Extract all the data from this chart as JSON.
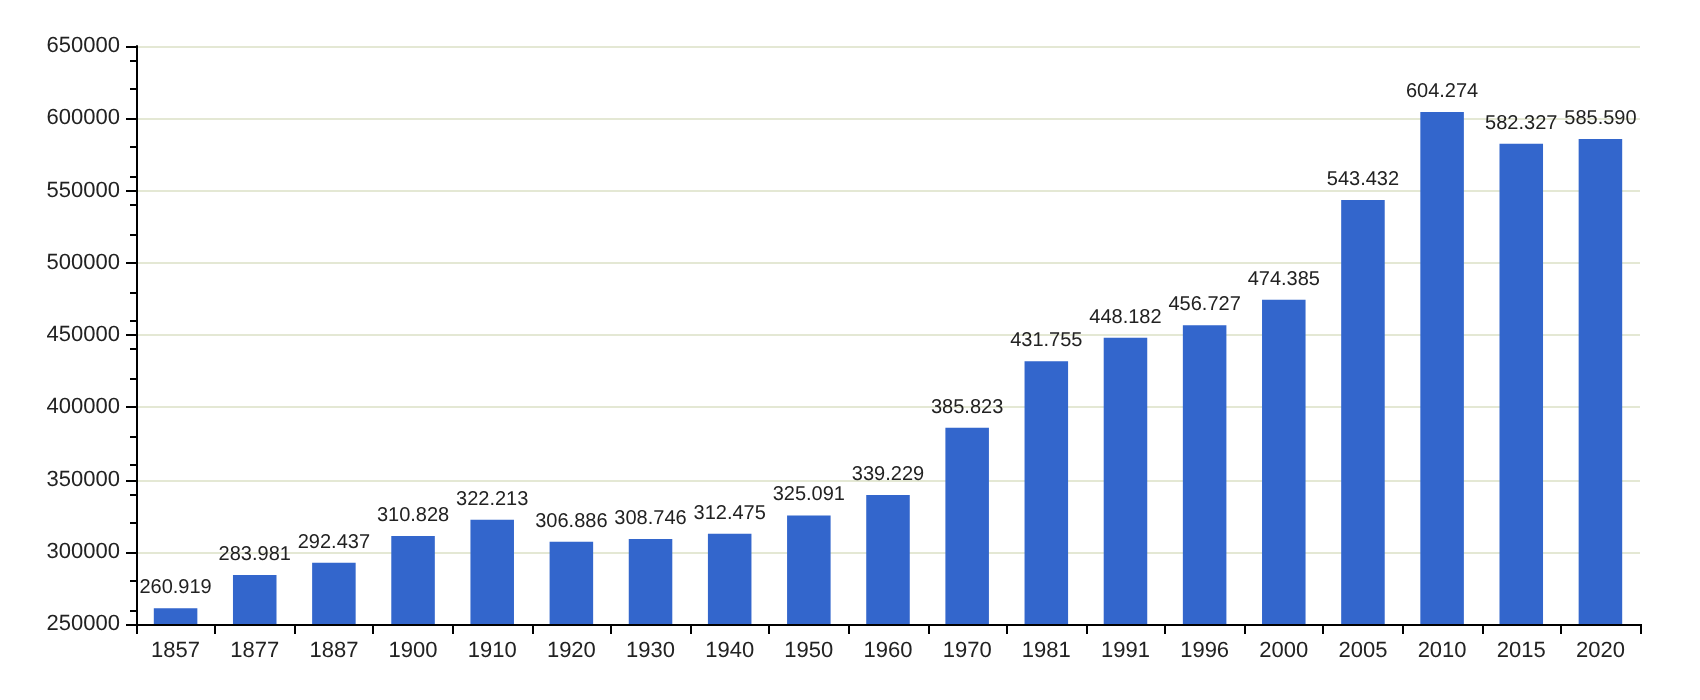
{
  "chart_data": {
    "type": "bar",
    "categories": [
      "1857",
      "1877",
      "1887",
      "1900",
      "1910",
      "1920",
      "1930",
      "1940",
      "1950",
      "1960",
      "1970",
      "1981",
      "1991",
      "1996",
      "2000",
      "2005",
      "2010",
      "2015",
      "2020"
    ],
    "values": [
      260919,
      283981,
      292437,
      310828,
      322213,
      306886,
      308746,
      312475,
      325091,
      339229,
      385823,
      431755,
      448182,
      456727,
      474385,
      543432,
      604274,
      582327,
      585590
    ],
    "value_labels": [
      "260.919",
      "283.981",
      "292.437",
      "310.828",
      "322.213",
      "306.886",
      "308.746",
      "312.475",
      "325.091",
      "339.229",
      "385.823",
      "431.755",
      "448.182",
      "456.727",
      "474.385",
      "543.432",
      "604.274",
      "582.327",
      "585.590"
    ],
    "color": "#3366cc",
    "ylim": [
      250000,
      650000
    ],
    "yticks": [
      250000,
      300000,
      350000,
      400000,
      450000,
      500000,
      550000,
      600000,
      650000
    ],
    "grid": "y"
  }
}
